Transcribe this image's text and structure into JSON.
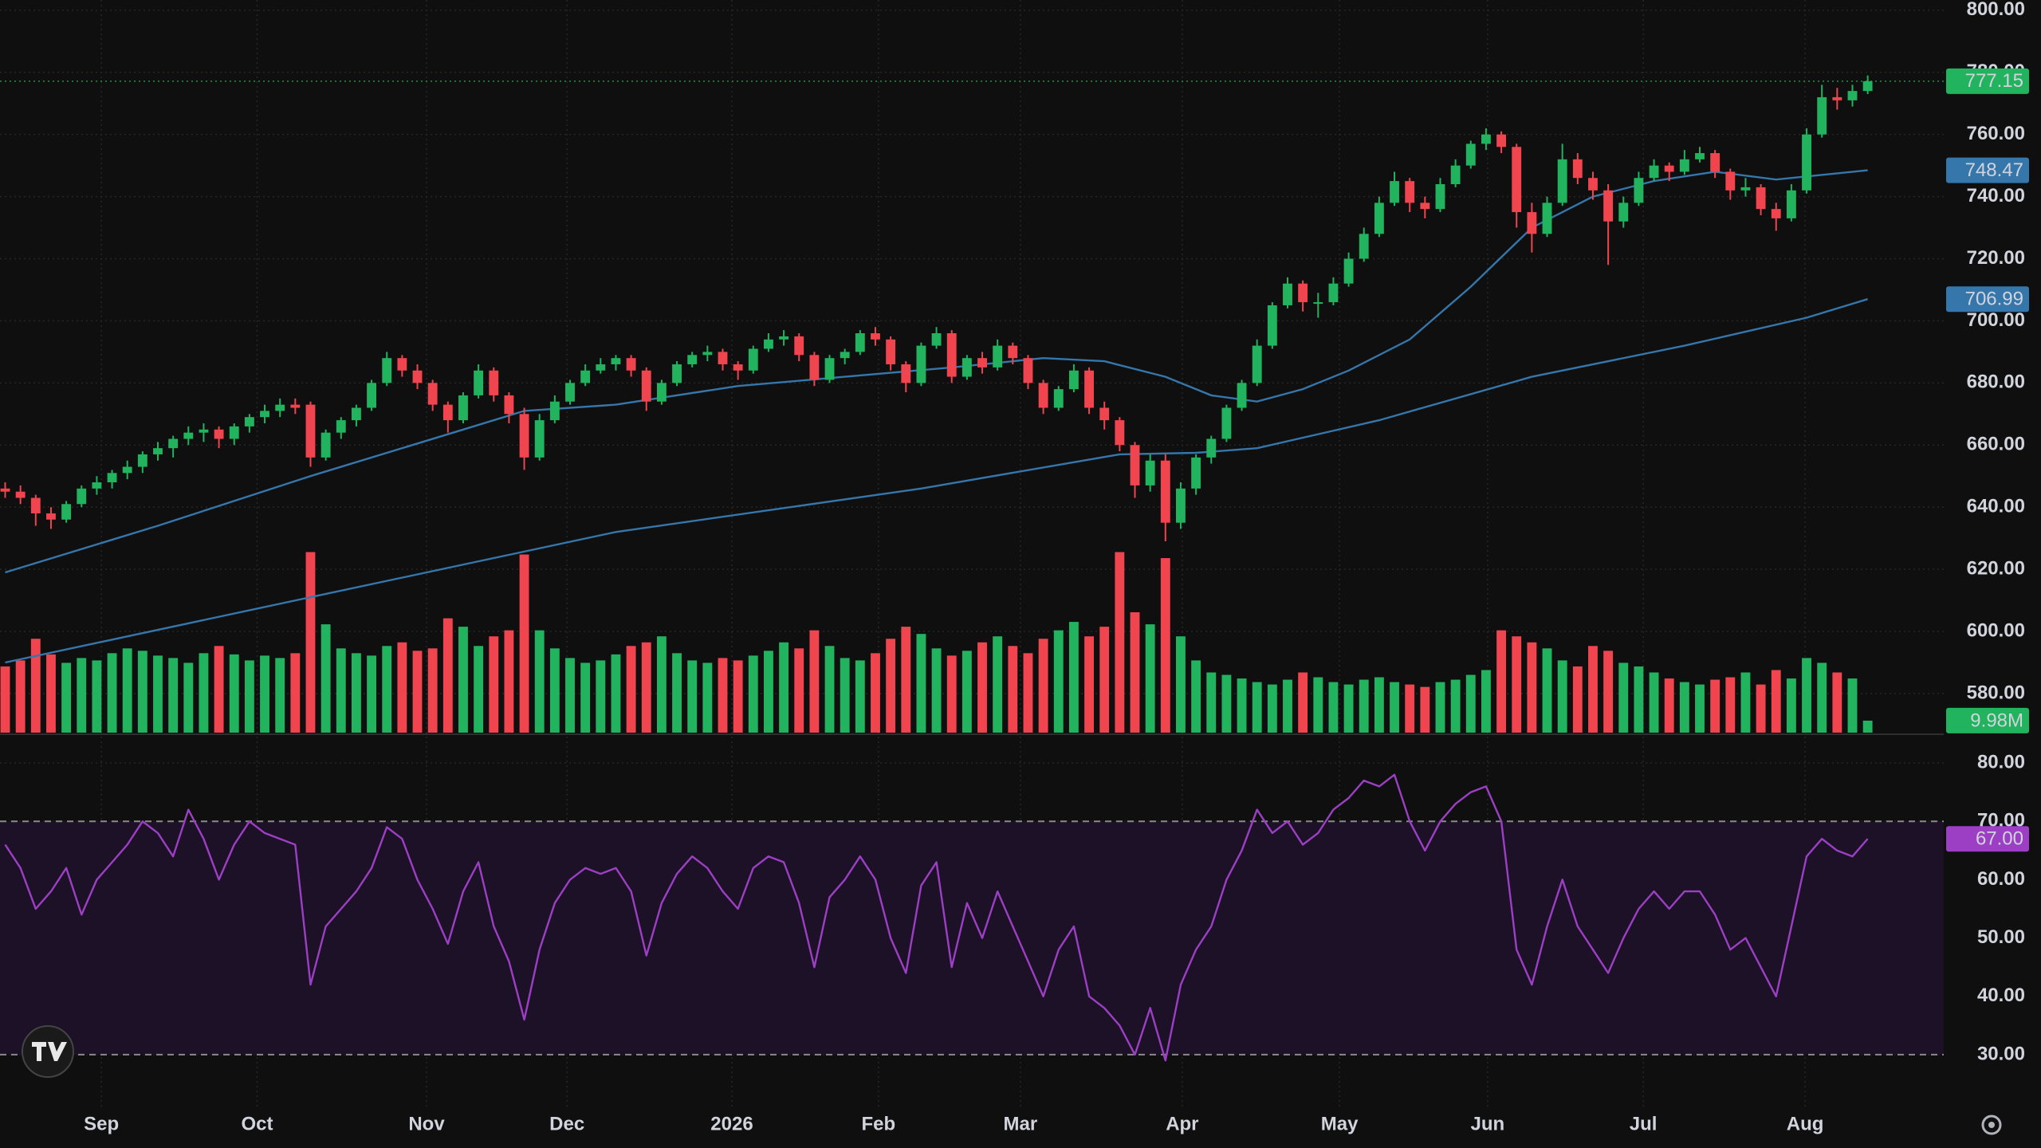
{
  "chart_data": {
    "type": "candlestick",
    "up_color": "#22b35e",
    "down_color": "#f0444f",
    "grid": true,
    "xlim": [
      -0.34,
      126.98
    ],
    "xticks": [
      {
        "value": 6.3,
        "label": "Sep"
      },
      {
        "value": 16.5,
        "label": "Oct"
      },
      {
        "value": 27.6,
        "label": "Nov"
      },
      {
        "value": 36.8,
        "label": "Dec"
      },
      {
        "value": 47.6,
        "label": "2026"
      },
      {
        "value": 57.2,
        "label": "Feb"
      },
      {
        "value": 66.5,
        "label": "Mar"
      },
      {
        "value": 77.1,
        "label": "Apr"
      },
      {
        "value": 87.4,
        "label": "May"
      },
      {
        "value": 97.1,
        "label": "Jun"
      },
      {
        "value": 107.3,
        "label": "Jul"
      },
      {
        "value": 117.9,
        "label": "Aug"
      }
    ],
    "ylim": [
      567.4,
      803.3
    ],
    "yticks": [
      {
        "value": 580,
        "label": "580.00"
      },
      {
        "value": 600,
        "label": "600.00"
      },
      {
        "value": 620,
        "label": "620.00"
      },
      {
        "value": 640,
        "label": "640.00"
      },
      {
        "value": 660,
        "label": "660.00"
      },
      {
        "value": 680,
        "label": "680.00"
      },
      {
        "value": 700,
        "label": "700.00"
      },
      {
        "value": 720,
        "label": "720.00"
      },
      {
        "value": 740,
        "label": "740.00"
      },
      {
        "value": 760,
        "label": "760.00"
      },
      {
        "value": 780,
        "label": "780.00"
      },
      {
        "value": 800,
        "label": "800.00"
      }
    ],
    "ohlc": [
      [
        646,
        648,
        643,
        645
      ],
      [
        645,
        647,
        641,
        643
      ],
      [
        643,
        644,
        634,
        638
      ],
      [
        638,
        640,
        633,
        636
      ],
      [
        636,
        642,
        635,
        641
      ],
      [
        641,
        647,
        640,
        646
      ],
      [
        646,
        650,
        644,
        648
      ],
      [
        648,
        652,
        646,
        651
      ],
      [
        651,
        655,
        649,
        653
      ],
      [
        653,
        658,
        651,
        657
      ],
      [
        657,
        661,
        655,
        659
      ],
      [
        659,
        663,
        656,
        662
      ],
      [
        662,
        666,
        660,
        664
      ],
      [
        664,
        667,
        661,
        665
      ],
      [
        665,
        666,
        659,
        662
      ],
      [
        662,
        667,
        660,
        666
      ],
      [
        666,
        670,
        664,
        669
      ],
      [
        669,
        673,
        667,
        671
      ],
      [
        671,
        675,
        669,
        673
      ],
      [
        673,
        675,
        670,
        672
      ],
      [
        673,
        674,
        653,
        656
      ],
      [
        656,
        665,
        655,
        664
      ],
      [
        664,
        669,
        662,
        668
      ],
      [
        668,
        673,
        666,
        672
      ],
      [
        672,
        681,
        671,
        680
      ],
      [
        680,
        690,
        679,
        688
      ],
      [
        688,
        689,
        682,
        684
      ],
      [
        684,
        686,
        678,
        680
      ],
      [
        680,
        681,
        671,
        673
      ],
      [
        673,
        674,
        664,
        668
      ],
      [
        668,
        677,
        667,
        676
      ],
      [
        676,
        686,
        675,
        684
      ],
      [
        684,
        685,
        674,
        676
      ],
      [
        676,
        677,
        667,
        670
      ],
      [
        670,
        672,
        652,
        656
      ],
      [
        656,
        670,
        655,
        668
      ],
      [
        668,
        676,
        667,
        674
      ],
      [
        674,
        681,
        673,
        680
      ],
      [
        680,
        686,
        679,
        684
      ],
      [
        684,
        688,
        683,
        686
      ],
      [
        686,
        689,
        684,
        688
      ],
      [
        688,
        689,
        682,
        684
      ],
      [
        684,
        685,
        671,
        674
      ],
      [
        674,
        681,
        673,
        680
      ],
      [
        680,
        687,
        679,
        686
      ],
      [
        686,
        690,
        685,
        689
      ],
      [
        689,
        692,
        687,
        690
      ],
      [
        690,
        691,
        684,
        686
      ],
      [
        686,
        687,
        681,
        684
      ],
      [
        684,
        692,
        683,
        691
      ],
      [
        691,
        696,
        690,
        694
      ],
      [
        694,
        697,
        692,
        695
      ],
      [
        695,
        696,
        687,
        689
      ],
      [
        689,
        690,
        679,
        681
      ],
      [
        681,
        689,
        680,
        688
      ],
      [
        688,
        691,
        686,
        690
      ],
      [
        690,
        697,
        689,
        696
      ],
      [
        696,
        698,
        692,
        694
      ],
      [
        694,
        695,
        684,
        686
      ],
      [
        686,
        687,
        677,
        680
      ],
      [
        680,
        693,
        679,
        692
      ],
      [
        692,
        698,
        691,
        696
      ],
      [
        696,
        697,
        680,
        682
      ],
      [
        682,
        689,
        681,
        688
      ],
      [
        688,
        690,
        683,
        685
      ],
      [
        685,
        694,
        684,
        692
      ],
      [
        692,
        693,
        686,
        688
      ],
      [
        688,
        689,
        678,
        680
      ],
      [
        680,
        681,
        670,
        672
      ],
      [
        672,
        679,
        671,
        678
      ],
      [
        678,
        686,
        677,
        684
      ],
      [
        684,
        685,
        670,
        672
      ],
      [
        672,
        674,
        665,
        668
      ],
      [
        668,
        669,
        658,
        660
      ],
      [
        660,
        661,
        643,
        647
      ],
      [
        647,
        657,
        645,
        655
      ],
      [
        655,
        657,
        629,
        635
      ],
      [
        635,
        648,
        633,
        646
      ],
      [
        646,
        657,
        644,
        656
      ],
      [
        656,
        663,
        654,
        662
      ],
      [
        662,
        673,
        661,
        672
      ],
      [
        672,
        681,
        671,
        680
      ],
      [
        680,
        694,
        679,
        692
      ],
      [
        692,
        706,
        691,
        705
      ],
      [
        705,
        714,
        704,
        712
      ],
      [
        712,
        713,
        703,
        706
      ],
      [
        706,
        709,
        701,
        706
      ],
      [
        706,
        714,
        705,
        712
      ],
      [
        712,
        722,
        711,
        720
      ],
      [
        720,
        730,
        719,
        728
      ],
      [
        728,
        740,
        727,
        738
      ],
      [
        738,
        748,
        737,
        745
      ],
      [
        745,
        746,
        735,
        738
      ],
      [
        738,
        740,
        733,
        736
      ],
      [
        736,
        746,
        735,
        744
      ],
      [
        744,
        752,
        743,
        750
      ],
      [
        750,
        758,
        749,
        757
      ],
      [
        757,
        762,
        755,
        760
      ],
      [
        760,
        761,
        754,
        756
      ],
      [
        756,
        757,
        730,
        735
      ],
      [
        735,
        738,
        722,
        728
      ],
      [
        728,
        740,
        727,
        738
      ],
      [
        738,
        757,
        737,
        752
      ],
      [
        752,
        754,
        744,
        746
      ],
      [
        746,
        748,
        739,
        742
      ],
      [
        742,
        744,
        718,
        732
      ],
      [
        732,
        740,
        730,
        738
      ],
      [
        738,
        748,
        737,
        746
      ],
      [
        746,
        752,
        745,
        750
      ],
      [
        750,
        751,
        745,
        748
      ],
      [
        748,
        755,
        747,
        752
      ],
      [
        752,
        756,
        751,
        754
      ],
      [
        754,
        755,
        746,
        748
      ],
      [
        748,
        749,
        739,
        742
      ],
      [
        742,
        746,
        740,
        743
      ],
      [
        743,
        744,
        734,
        736
      ],
      [
        736,
        738,
        729,
        733
      ],
      [
        733,
        744,
        732,
        742
      ],
      [
        742,
        762,
        741,
        760
      ],
      [
        760,
        776,
        759,
        772
      ],
      [
        772,
        775,
        768,
        771
      ],
      [
        771,
        776,
        769,
        774
      ],
      [
        774,
        779,
        773,
        777.15
      ]
    ],
    "volume": {
      "ylim": [
        0,
        608.6
      ],
      "last_value_label": "9.98M",
      "values": [
        55,
        60,
        78,
        65,
        58,
        62,
        60,
        66,
        70,
        68,
        64,
        62,
        58,
        66,
        72,
        65,
        60,
        64,
        62,
        66,
        150,
        90,
        70,
        66,
        64,
        72,
        75,
        68,
        70,
        95,
        88,
        72,
        80,
        85,
        148,
        85,
        70,
        62,
        58,
        60,
        65,
        72,
        75,
        80,
        66,
        60,
        58,
        62,
        60,
        64,
        68,
        75,
        70,
        85,
        72,
        62,
        60,
        66,
        78,
        88,
        82,
        70,
        64,
        68,
        75,
        80,
        72,
        66,
        78,
        85,
        92,
        80,
        88,
        150,
        100,
        90,
        145,
        80,
        60,
        50,
        48,
        45,
        42,
        40,
        44,
        50,
        46,
        42,
        40,
        44,
        46,
        42,
        40,
        38,
        42,
        44,
        48,
        52,
        85,
        80,
        75,
        70,
        60,
        55,
        72,
        68,
        58,
        55,
        50,
        45,
        42,
        40,
        44,
        46,
        50,
        40,
        52,
        45,
        62,
        58,
        50,
        45,
        9.98
      ]
    },
    "moving_averages": [
      {
        "color": "#3576ab",
        "x": [
          0,
          10,
          20,
          30,
          34,
          40,
          48,
          55,
          62,
          68,
          72,
          76,
          79,
          82,
          85,
          88,
          92,
          96,
          100,
          104,
          108,
          112,
          116,
          122
        ],
        "values": [
          619,
          634,
          650,
          665,
          671,
          673,
          679,
          682,
          685,
          688,
          687,
          682,
          676,
          674,
          678,
          684,
          694,
          711,
          730,
          740,
          745,
          748,
          745.5,
          748.47
        ]
      },
      {
        "color": "#3576ab",
        "x": [
          0,
          20,
          40,
          60,
          73,
          78,
          82,
          90,
          100,
          110,
          118,
          122
        ],
        "values": [
          590,
          611,
          632,
          646,
          657,
          657.5,
          659,
          668,
          682,
          692,
          701,
          706.99
        ]
      }
    ],
    "rsi": {
      "type": "line",
      "color": "#9c3fc4",
      "ylim": [
        22.2,
        84.8
      ],
      "bands": [
        70,
        30
      ],
      "last_value_label": "67.00",
      "yticks": [
        {
          "value": 30,
          "label": "30.00"
        },
        {
          "value": 40,
          "label": "40.00"
        },
        {
          "value": 50,
          "label": "50.00"
        },
        {
          "value": 60,
          "label": "60.00"
        },
        {
          "value": 70,
          "label": "70.00"
        },
        {
          "value": 80,
          "label": "80.00"
        }
      ],
      "values": [
        66,
        62,
        55,
        58,
        62,
        54,
        60,
        63,
        66,
        70,
        68,
        64,
        72,
        67,
        60,
        66,
        70,
        68,
        67,
        66,
        42,
        52,
        55,
        58,
        62,
        69,
        67,
        60,
        55,
        49,
        58,
        63,
        52,
        46,
        36,
        48,
        56,
        60,
        62,
        61,
        62,
        58,
        47,
        56,
        61,
        64,
        62,
        58,
        55,
        62,
        64,
        63,
        56,
        45,
        57,
        60,
        64,
        60,
        50,
        44,
        59,
        63,
        45,
        56,
        50,
        58,
        52,
        46,
        40,
        48,
        52,
        40,
        38,
        35,
        30,
        38,
        29,
        42,
        48,
        52,
        60,
        65,
        72,
        68,
        70,
        66,
        68,
        72,
        74,
        77,
        76,
        78,
        70,
        65,
        70,
        73,
        75,
        76,
        70,
        48,
        42,
        52,
        60,
        52,
        48,
        44,
        50,
        55,
        58,
        55,
        58,
        58,
        54,
        48,
        50,
        45,
        40,
        52,
        64,
        67,
        65,
        64,
        67
      ]
    }
  }
}
